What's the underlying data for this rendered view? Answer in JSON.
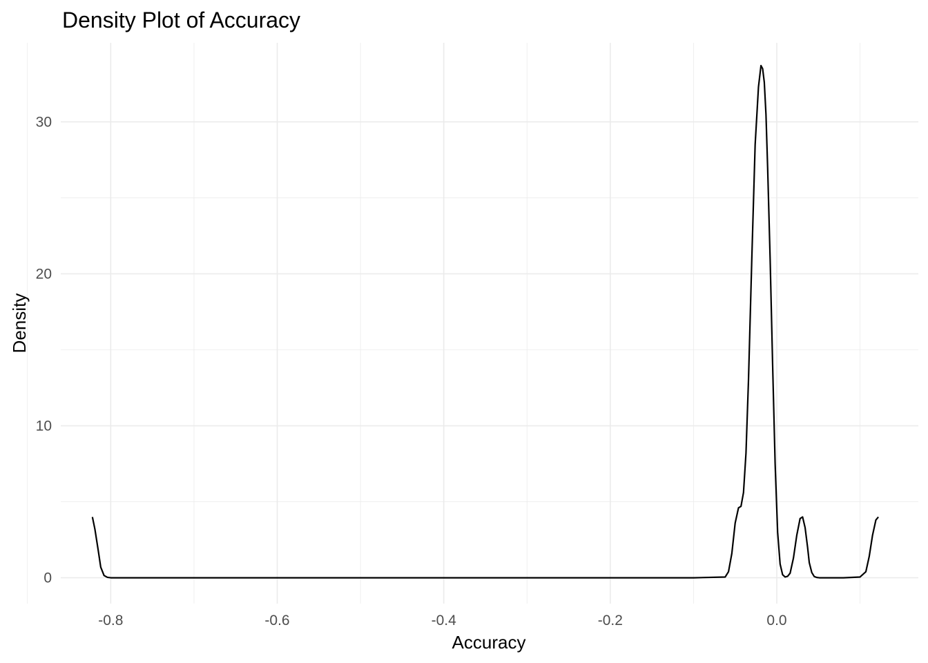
{
  "chart_data": {
    "type": "line",
    "title": "Density Plot of Accuracy",
    "xlabel": "Accuracy",
    "ylabel": "Density",
    "xlim": [
      -0.86,
      0.17
    ],
    "ylim": [
      -1.7,
      35.2
    ],
    "x_ticks": [
      -0.8,
      -0.6,
      -0.4,
      -0.2,
      0.0
    ],
    "x_tick_labels": [
      "-0.8",
      "-0.6",
      "-0.4",
      "-0.2",
      "0.0"
    ],
    "x_minor_ticks": [
      -0.9,
      -0.7,
      -0.5,
      -0.3,
      -0.1,
      0.1
    ],
    "y_ticks": [
      0,
      10,
      20,
      30
    ],
    "y_tick_labels": [
      "0",
      "10",
      "20",
      "30"
    ],
    "y_minor_ticks": [
      5,
      15,
      25
    ],
    "grid": true,
    "legend": "none",
    "series": [
      {
        "color": "#000000",
        "x": [
          -0.822,
          -0.819,
          -0.815,
          -0.812,
          -0.808,
          -0.804,
          -0.8,
          -0.79,
          -0.7,
          -0.5,
          -0.3,
          -0.1,
          -0.062,
          -0.058,
          -0.054,
          -0.05,
          -0.046,
          -0.043,
          -0.04,
          -0.037,
          -0.034,
          -0.03,
          -0.026,
          -0.022,
          -0.019,
          -0.017,
          -0.015,
          -0.013,
          -0.011,
          -0.008,
          -0.005,
          -0.002,
          0.001,
          0.004,
          0.007,
          0.01,
          0.013,
          0.016,
          0.02,
          0.024,
          0.028,
          0.031,
          0.034,
          0.037,
          0.039,
          0.042,
          0.045,
          0.048,
          0.051,
          0.055,
          0.06,
          0.08,
          0.1,
          0.107,
          0.111,
          0.115,
          0.119,
          0.122
        ],
        "y": [
          4.0,
          3.2,
          1.8,
          0.7,
          0.15,
          0.03,
          0.0,
          0.0,
          0.0,
          0.0,
          0.0,
          0.0,
          0.05,
          0.4,
          1.6,
          3.6,
          4.6,
          4.7,
          5.6,
          8.2,
          13.0,
          21.0,
          28.5,
          32.3,
          33.7,
          33.5,
          32.6,
          30.5,
          27.0,
          21.0,
          14.0,
          7.5,
          3.0,
          0.9,
          0.2,
          0.05,
          0.1,
          0.3,
          1.3,
          2.8,
          3.9,
          4.0,
          3.3,
          2.0,
          1.0,
          0.35,
          0.08,
          0.02,
          0.0,
          0.0,
          0.0,
          0.0,
          0.05,
          0.4,
          1.4,
          2.8,
          3.8,
          4.0
        ]
      }
    ]
  }
}
